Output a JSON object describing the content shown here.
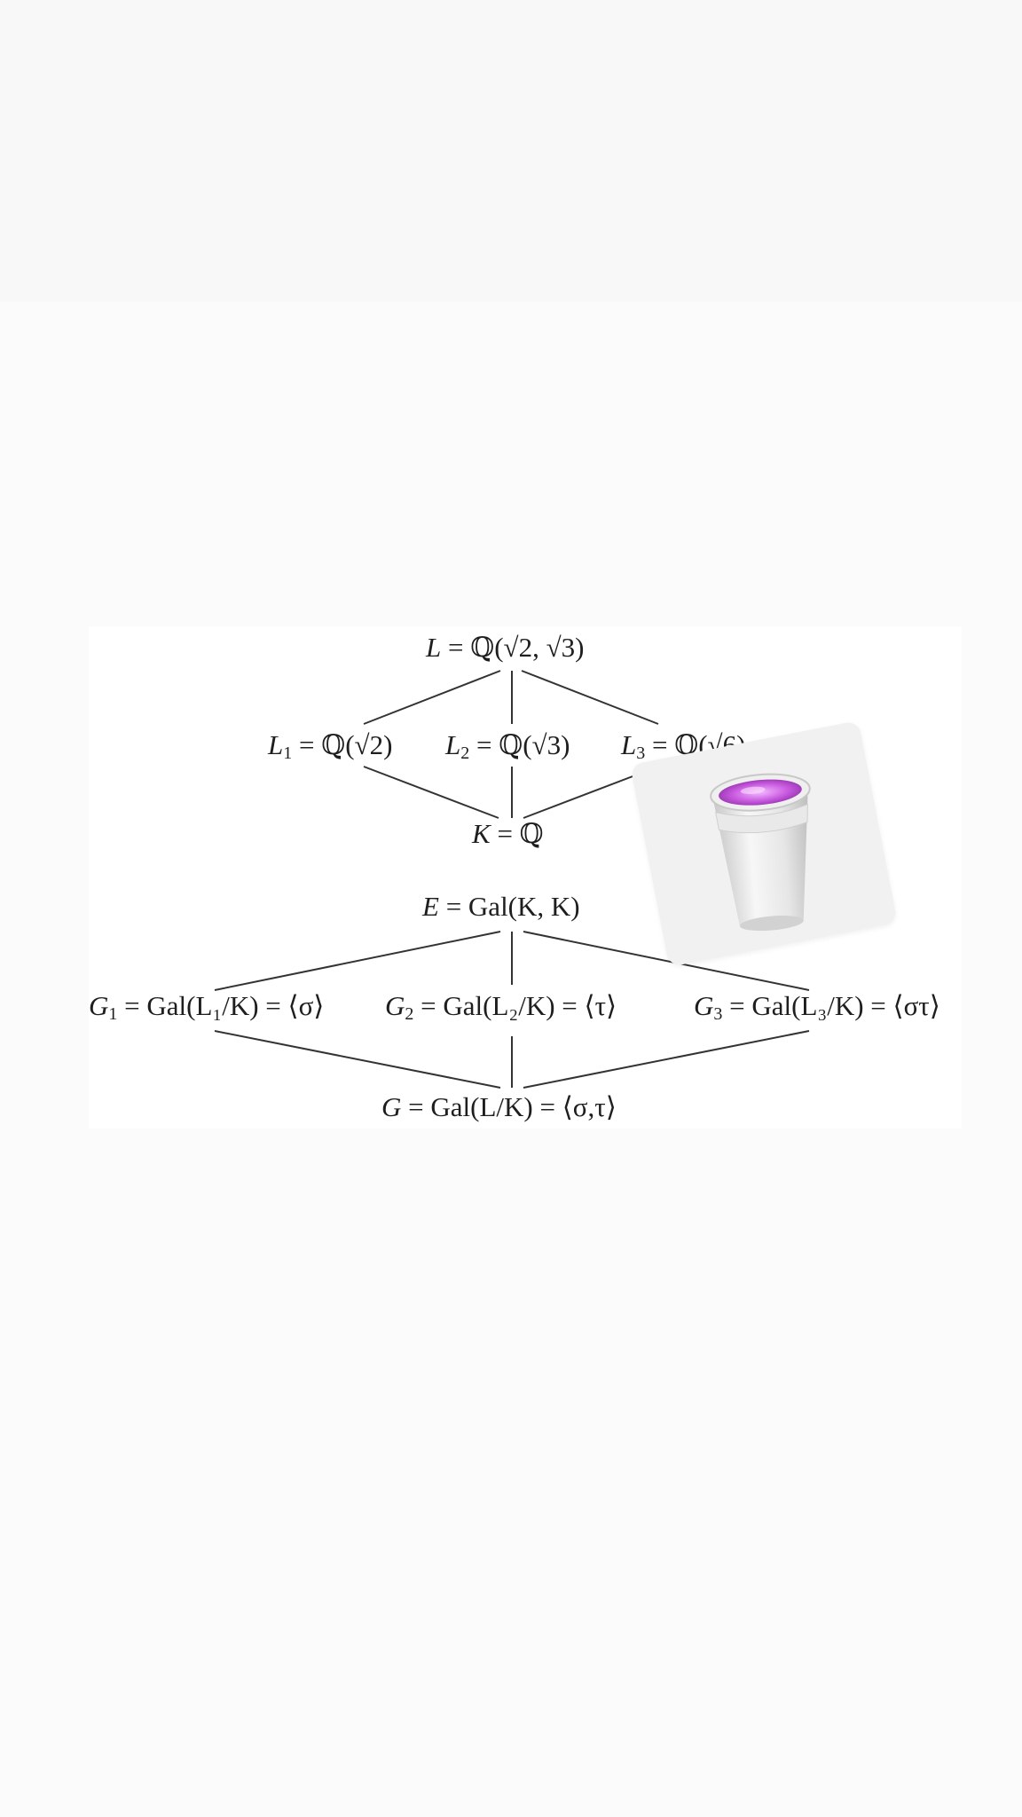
{
  "diagram": {
    "field_lattice": {
      "top": {
        "sym": "L",
        "sub": "",
        "rhs": "= ℚ(√2, √3)"
      },
      "left": {
        "sym": "L",
        "sub": "1",
        "rhs": "= ℚ(√2)"
      },
      "middle": {
        "sym": "L",
        "sub": "2",
        "rhs": "= ℚ(√3)"
      },
      "right": {
        "sym": "L",
        "sub": "3",
        "rhs": "= ℚ(√6)"
      },
      "bottom": {
        "sym": "K",
        "sub": "",
        "rhs": "= ℚ"
      }
    },
    "group_lattice": {
      "top": {
        "sym": "E",
        "sub": "",
        "rhs": "= Gal(K, K)"
      },
      "left": {
        "sym": "G",
        "sub": "1",
        "rhs": "= Gal(L₁/K) = ⟨σ⟩"
      },
      "middle": {
        "sym": "G",
        "sub": "2",
        "rhs": "= Gal(L₂/K) = ⟨τ⟩"
      },
      "right": {
        "sym": "G",
        "sub": "3",
        "rhs": "= Gal(L₃/K) = ⟨στ⟩"
      },
      "bottom": {
        "sym": "G",
        "sub": "",
        "rhs": "= Gal(L/K) = ⟨σ,τ⟩"
      }
    }
  },
  "sticker": {
    "subject": "styrofoam-double-cup-with-purple-drink"
  },
  "colors": {
    "ink": "#1e1e1e",
    "line": "#333333",
    "purple": "#c95be0"
  }
}
